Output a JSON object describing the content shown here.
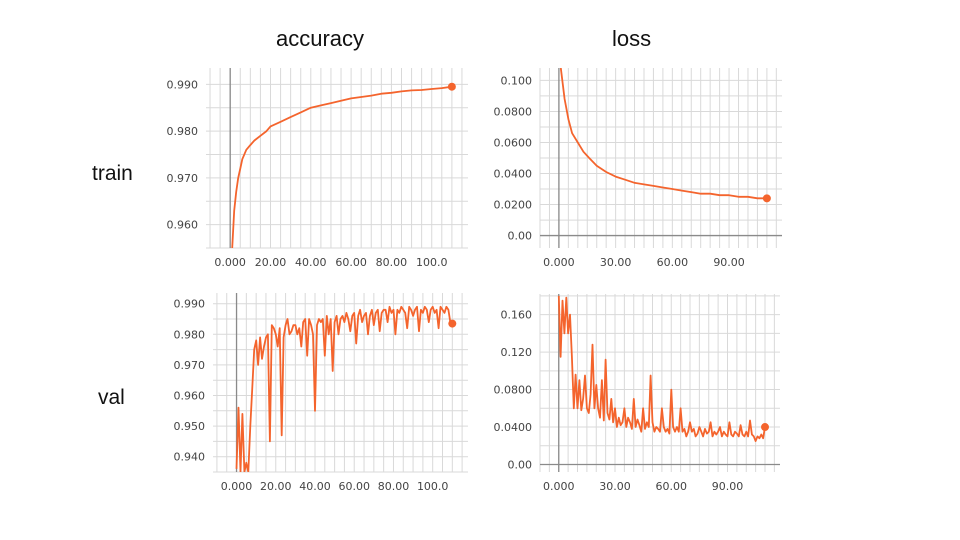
{
  "headings": {
    "accuracy": "accuracy",
    "loss": "loss",
    "train": "train",
    "val": "val"
  },
  "colors": {
    "series": "#f4642d",
    "grid": "#d9d9d9",
    "axis": "#8a8a8a"
  },
  "chart_data": [
    {
      "id": "train-accuracy",
      "type": "line",
      "xlim": [
        -12,
        118
      ],
      "ylim": [
        0.955,
        0.9935
      ],
      "xticks": [
        0,
        20,
        40,
        60,
        80,
        100
      ],
      "xtick_labels": [
        "0.000",
        "20.00",
        "40.00",
        "60.00",
        "80.00",
        "100.0"
      ],
      "yticks": [
        0.96,
        0.97,
        0.98,
        0.99
      ],
      "ytick_labels": [
        "0.960",
        "0.970",
        "0.980",
        "0.990"
      ],
      "series": [
        {
          "x": [
            1,
            2,
            3,
            4,
            5,
            6,
            8,
            10,
            12,
            15,
            18,
            20,
            25,
            30,
            35,
            40,
            45,
            50,
            55,
            60,
            65,
            70,
            75,
            80,
            85,
            90,
            95,
            100,
            105,
            110
          ],
          "y": [
            0.955,
            0.963,
            0.967,
            0.97,
            0.972,
            0.974,
            0.976,
            0.977,
            0.978,
            0.979,
            0.98,
            0.981,
            0.982,
            0.983,
            0.984,
            0.985,
            0.9855,
            0.986,
            0.9865,
            0.987,
            0.9873,
            0.9876,
            0.988,
            0.9882,
            0.9885,
            0.9887,
            0.9888,
            0.989,
            0.9892,
            0.9895
          ]
        }
      ]
    },
    {
      "id": "train-loss",
      "type": "line",
      "xlim": [
        -10,
        118
      ],
      "ylim": [
        -0.008,
        0.108
      ],
      "xticks": [
        0,
        30,
        60,
        90
      ],
      "xtick_labels": [
        "0.000",
        "30.00",
        "60.00",
        "90.00"
      ],
      "yticks": [
        0,
        0.02,
        0.04,
        0.06,
        0.08,
        0.1
      ],
      "ytick_labels": [
        "0.00",
        "0.0200",
        "0.0400",
        "0.0600",
        "0.0800",
        "0.100"
      ],
      "series": [
        {
          "x": [
            1,
            2,
            3,
            5,
            7,
            10,
            13,
            16,
            20,
            25,
            30,
            35,
            40,
            45,
            50,
            55,
            60,
            65,
            70,
            75,
            80,
            85,
            90,
            95,
            100,
            105,
            110
          ],
          "y": [
            0.108,
            0.098,
            0.088,
            0.075,
            0.066,
            0.06,
            0.054,
            0.05,
            0.045,
            0.041,
            0.038,
            0.036,
            0.034,
            0.033,
            0.032,
            0.031,
            0.03,
            0.029,
            0.028,
            0.027,
            0.027,
            0.026,
            0.026,
            0.025,
            0.025,
            0.024,
            0.024
          ]
        }
      ]
    },
    {
      "id": "val-accuracy",
      "type": "line",
      "xlim": [
        -12,
        118
      ],
      "ylim": [
        0.935,
        0.9935
      ],
      "xticks": [
        0,
        20,
        40,
        60,
        80,
        100
      ],
      "xtick_labels": [
        "0.000",
        "20.00",
        "40.00",
        "60.00",
        "80.00",
        "100.0"
      ],
      "yticks": [
        0.94,
        0.95,
        0.96,
        0.97,
        0.98,
        0.99
      ],
      "ytick_labels": [
        "0.940",
        "0.950",
        "0.960",
        "0.970",
        "0.980",
        "0.990"
      ],
      "series": [
        {
          "x": [
            0,
            1,
            2,
            3,
            4,
            5,
            6,
            7,
            8,
            9,
            10,
            11,
            12,
            13,
            14,
            15,
            16,
            17,
            18,
            19,
            20,
            21,
            22,
            23,
            24,
            25,
            26,
            27,
            28,
            29,
            30,
            31,
            32,
            33,
            34,
            35,
            36,
            37,
            38,
            39,
            40,
            41,
            42,
            43,
            44,
            45,
            46,
            47,
            48,
            49,
            50,
            51,
            52,
            53,
            54,
            55,
            56,
            57,
            58,
            59,
            60,
            61,
            62,
            63,
            64,
            65,
            66,
            67,
            68,
            69,
            70,
            71,
            72,
            73,
            74,
            75,
            76,
            77,
            78,
            79,
            80,
            81,
            82,
            83,
            84,
            85,
            86,
            87,
            88,
            89,
            90,
            91,
            92,
            93,
            94,
            95,
            96,
            97,
            98,
            99,
            100,
            101,
            102,
            103,
            104,
            105,
            106,
            107,
            108,
            109,
            110
          ],
          "y": [
            0.936,
            0.956,
            0.935,
            0.954,
            0.935,
            0.938,
            0.935,
            0.95,
            0.962,
            0.975,
            0.978,
            0.97,
            0.979,
            0.972,
            0.976,
            0.979,
            0.98,
            0.945,
            0.983,
            0.982,
            0.98,
            0.976,
            0.982,
            0.947,
            0.979,
            0.983,
            0.985,
            0.98,
            0.981,
            0.983,
            0.983,
            0.98,
            0.982,
            0.976,
            0.984,
            0.985,
            0.973,
            0.985,
            0.983,
            0.98,
            0.955,
            0.983,
            0.985,
            0.984,
            0.985,
            0.973,
            0.986,
            0.98,
            0.985,
            0.968,
            0.984,
            0.986,
            0.98,
            0.985,
            0.986,
            0.984,
            0.987,
            0.985,
            0.981,
            0.986,
            0.987,
            0.977,
            0.986,
            0.988,
            0.984,
            0.986,
            0.987,
            0.98,
            0.986,
            0.988,
            0.983,
            0.987,
            0.988,
            0.981,
            0.987,
            0.988,
            0.988,
            0.984,
            0.989,
            0.987,
            0.988,
            0.98,
            0.988,
            0.987,
            0.989,
            0.988,
            0.987,
            0.982,
            0.989,
            0.988,
            0.986,
            0.988,
            0.989,
            0.981,
            0.988,
            0.987,
            0.989,
            0.988,
            0.984,
            0.988,
            0.989,
            0.987,
            0.988,
            0.982,
            0.989,
            0.988,
            0.987,
            0.989,
            0.988,
            0.984,
            0.9835
          ]
        }
      ]
    },
    {
      "id": "val-loss",
      "type": "line",
      "xlim": [
        -10,
        118
      ],
      "ylim": [
        -0.008,
        0.182
      ],
      "xticks": [
        0,
        30,
        60,
        90
      ],
      "xtick_labels": [
        "0.000",
        "30.00",
        "60.00",
        "90.00"
      ],
      "yticks": [
        0,
        0.04,
        0.08,
        0.12,
        0.16
      ],
      "ytick_labels": [
        "0.00",
        "0.0400",
        "0.0800",
        "0.120",
        "0.160"
      ],
      "series": [
        {
          "x": [
            0,
            1,
            2,
            3,
            4,
            5,
            6,
            7,
            8,
            9,
            10,
            11,
            12,
            13,
            14,
            15,
            16,
            17,
            18,
            19,
            20,
            21,
            22,
            23,
            24,
            25,
            26,
            27,
            28,
            29,
            30,
            31,
            32,
            33,
            34,
            35,
            36,
            37,
            38,
            39,
            40,
            41,
            42,
            43,
            44,
            45,
            46,
            47,
            48,
            49,
            50,
            51,
            52,
            53,
            54,
            55,
            56,
            57,
            58,
            59,
            60,
            61,
            62,
            63,
            64,
            65,
            66,
            67,
            68,
            69,
            70,
            71,
            72,
            73,
            74,
            75,
            76,
            77,
            78,
            79,
            80,
            81,
            82,
            83,
            84,
            85,
            86,
            87,
            88,
            89,
            90,
            91,
            92,
            93,
            94,
            95,
            96,
            97,
            98,
            99,
            100,
            101,
            102,
            103,
            104,
            105,
            106,
            107,
            108,
            109,
            110
          ],
          "y": [
            0.18,
            0.115,
            0.175,
            0.14,
            0.178,
            0.14,
            0.16,
            0.115,
            0.06,
            0.096,
            0.06,
            0.09,
            0.058,
            0.07,
            0.095,
            0.06,
            0.055,
            0.075,
            0.128,
            0.06,
            0.085,
            0.06,
            0.05,
            0.09,
            0.047,
            0.112,
            0.055,
            0.048,
            0.07,
            0.045,
            0.06,
            0.04,
            0.05,
            0.042,
            0.045,
            0.06,
            0.04,
            0.05,
            0.045,
            0.038,
            0.07,
            0.04,
            0.048,
            0.042,
            0.035,
            0.06,
            0.038,
            0.045,
            0.04,
            0.095,
            0.045,
            0.035,
            0.04,
            0.038,
            0.035,
            0.06,
            0.04,
            0.035,
            0.038,
            0.033,
            0.08,
            0.04,
            0.035,
            0.04,
            0.035,
            0.06,
            0.035,
            0.038,
            0.03,
            0.035,
            0.045,
            0.035,
            0.038,
            0.03,
            0.033,
            0.04,
            0.035,
            0.03,
            0.038,
            0.033,
            0.035,
            0.045,
            0.03,
            0.035,
            0.032,
            0.035,
            0.04,
            0.03,
            0.035,
            0.032,
            0.03,
            0.045,
            0.032,
            0.03,
            0.035,
            0.033,
            0.03,
            0.042,
            0.032,
            0.03,
            0.035,
            0.03,
            0.047,
            0.032,
            0.03,
            0.025,
            0.03,
            0.028,
            0.032,
            0.028,
            0.04
          ]
        }
      ]
    }
  ]
}
